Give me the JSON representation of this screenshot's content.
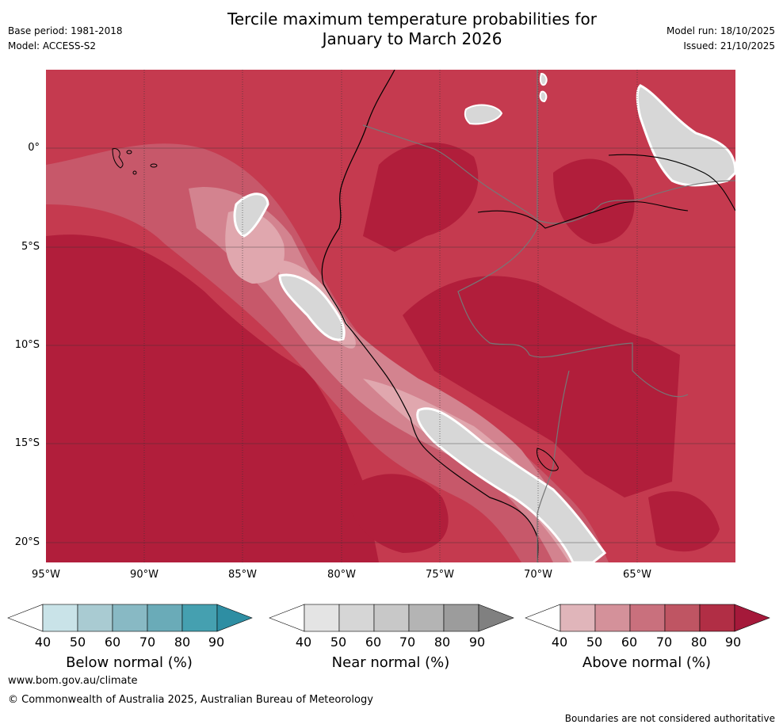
{
  "header": {
    "title_line1": "Tercile maximum temperature probabilities for",
    "title_line2": "January to March 2026",
    "base_period": "Base period: 1981-2018",
    "model": "Model: ACCESS-S2",
    "model_run": "Model run: 18/10/2025",
    "issued": "Issued: 21/10/2025"
  },
  "map": {
    "lat_labels": [
      "0°",
      "5°S",
      "10°S",
      "15°S",
      "20°S"
    ],
    "lon_labels": [
      "95°W",
      "90°W",
      "85°W",
      "80°W",
      "75°W",
      "70°W",
      "65°W"
    ],
    "colors": {
      "above_90": "#b11e3b",
      "above_80": "#bf3a4e",
      "above_70": "#c7586a",
      "above_60": "#d3838f",
      "above_50": "#e0a7ae",
      "near": "#d7d7d7",
      "ocean_base": "#c53a4f"
    }
  },
  "legends": [
    {
      "name": "below",
      "title": "Below normal (%)",
      "ticks": [
        "40",
        "50",
        "60",
        "70",
        "80",
        "90"
      ],
      "colors": [
        "#ffffff",
        "#c9e3e8",
        "#a9cbd2",
        "#88b9c4",
        "#6aabb8",
        "#45a0b0",
        "#2e8ea3"
      ]
    },
    {
      "name": "near",
      "title": "Near normal (%)",
      "ticks": [
        "40",
        "50",
        "60",
        "70",
        "80",
        "90"
      ],
      "colors": [
        "#ffffff",
        "#e4e4e4",
        "#d6d6d6",
        "#c8c8c8",
        "#b4b4b4",
        "#9c9c9c",
        "#808080"
      ]
    },
    {
      "name": "above",
      "title": "Above normal (%)",
      "ticks": [
        "40",
        "50",
        "60",
        "70",
        "80",
        "90"
      ],
      "colors": [
        "#ffffff",
        "#e0b5ba",
        "#d4919a",
        "#c9707d",
        "#bf5563",
        "#b12e45",
        "#a5193a"
      ]
    }
  ],
  "footer": {
    "url": "www.bom.gov.au/climate",
    "copyright": "© Commonwealth of Australia 2025, Australian Bureau of Meteorology",
    "disclaimer": "Boundaries are not considered authoritative"
  }
}
